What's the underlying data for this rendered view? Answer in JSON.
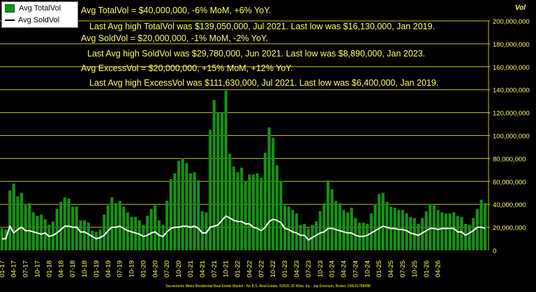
{
  "chart_data": {
    "type": "bar",
    "y_axis_title": "Vol",
    "ylim": [
      0,
      200000000
    ],
    "y_ticks": [
      "0",
      "20,000,000",
      "40,000,000",
      "60,000,000",
      "80,000,000",
      "100,000,000",
      "120,000,000",
      "140,000,000",
      "160,000,000",
      "180,000,000",
      "200,000,000"
    ],
    "y_tick_values": [
      0,
      20000000,
      40000000,
      60000000,
      80000000,
      100000000,
      120000000,
      140000000,
      160000000,
      180000000,
      200000000
    ],
    "x_tick_labels": [
      "01-17",
      "04-17",
      "07-17",
      "10-17",
      "01-18",
      "04-18",
      "07-18",
      "10-18",
      "01-19",
      "04-19",
      "07-19",
      "10-19",
      "01-20",
      "04-20",
      "07-20",
      "10-20",
      "01-21",
      "04-21",
      "07-21",
      "10-21",
      "01-22",
      "04-22",
      "07-22",
      "10-22",
      "01-23",
      "04-23",
      "07-23",
      "10-23",
      "01-24",
      "04-24",
      "07-24",
      "10-24",
      "01-25",
      "04-25",
      "07-25",
      "10-25",
      "01-26",
      "04-26"
    ],
    "grid": true,
    "legend": "top-left",
    "series": [
      {
        "name": "Avg TotalVol",
        "kind": "bar",
        "color": "#1a8f1a",
        "values": [
          19000000,
          18000000,
          52000000,
          58000000,
          47000000,
          50000000,
          40000000,
          41000000,
          33000000,
          30000000,
          31000000,
          27000000,
          22000000,
          25000000,
          36000000,
          42000000,
          46000000,
          45000000,
          38000000,
          38000000,
          26000000,
          26000000,
          24000000,
          17000000,
          16130000,
          18000000,
          31000000,
          39000000,
          46000000,
          41000000,
          43000000,
          38000000,
          33000000,
          29000000,
          29000000,
          26000000,
          22000000,
          30000000,
          36000000,
          39000000,
          26000000,
          22000000,
          43000000,
          62000000,
          67000000,
          78000000,
          80000000,
          76000000,
          67000000,
          68000000,
          61000000,
          34000000,
          33000000,
          105000000,
          131000000,
          120000000,
          120000000,
          139050000,
          84000000,
          73000000,
          68000000,
          72000000,
          60000000,
          66000000,
          66000000,
          67000000,
          63000000,
          85000000,
          107000000,
          98000000,
          74000000,
          60000000,
          39000000,
          38000000,
          35000000,
          32000000,
          22000000,
          23000000,
          19000000,
          22000000,
          25000000,
          34000000,
          41000000,
          61000000,
          53000000,
          43000000,
          41000000,
          35000000,
          33000000,
          37000000,
          28000000,
          24000000,
          24000000,
          23000000,
          32000000,
          40000000,
          49000000,
          50000000,
          42000000,
          38000000,
          37000000,
          35000000,
          35000000,
          32000000,
          29000000,
          28000000,
          23000000,
          28000000,
          34000000,
          40000000,
          39000000,
          35000000,
          33000000,
          32000000,
          32000000,
          33000000,
          30000000,
          29000000,
          23000000,
          22000000,
          28000000,
          36000000,
          44000000,
          41000000
        ]
      },
      {
        "name": "Avg SoldVol",
        "kind": "line",
        "color": "#ffffff",
        "values": [
          10000000,
          10000000,
          21000000,
          15000000,
          18000000,
          20000000,
          17000000,
          17000000,
          16000000,
          15000000,
          14000000,
          15000000,
          12000000,
          13000000,
          15000000,
          18000000,
          21000000,
          21000000,
          20000000,
          20000000,
          16000000,
          16000000,
          14000000,
          12000000,
          10000000,
          11000000,
          13000000,
          17000000,
          20000000,
          20000000,
          21000000,
          19000000,
          17000000,
          16000000,
          15000000,
          14000000,
          12000000,
          13000000,
          15000000,
          16000000,
          13000000,
          12000000,
          16000000,
          19000000,
          20000000,
          20000000,
          21000000,
          21000000,
          20000000,
          21000000,
          19000000,
          15000000,
          15000000,
          20000000,
          21000000,
          22000000,
          26000000,
          29780000,
          28000000,
          26000000,
          25000000,
          25000000,
          23000000,
          23000000,
          20000000,
          19000000,
          17000000,
          20000000,
          25000000,
          27000000,
          26000000,
          24000000,
          19000000,
          18000000,
          16000000,
          15000000,
          13000000,
          13000000,
          8890000,
          11000000,
          13000000,
          15000000,
          16000000,
          19000000,
          19000000,
          18000000,
          17000000,
          16000000,
          15000000,
          15000000,
          13000000,
          12000000,
          12000000,
          13000000,
          15000000,
          17000000,
          19000000,
          21000000,
          20000000,
          19000000,
          19000000,
          18000000,
          18000000,
          17000000,
          15000000,
          14000000,
          13000000,
          15000000,
          17000000,
          19000000,
          19000000,
          18000000,
          19000000,
          19000000,
          19000000,
          19000000,
          16000000,
          16000000,
          13000000,
          15000000,
          17000000,
          20000000,
          20000000,
          19000000
        ]
      }
    ],
    "annotations": [
      "Avg TotalVol = $40,000,000, -6% MoM, +6% YoY.",
      "Last Avg high TotalVol was $139,050,000, Jul 2021. Last low was $16,130,000, Jan 2019.",
      "Avg SoldVol = $20,000,000, -1% MoM, -2% YoY.",
      "Last Avg high SoldVol was $29,780,000, Jun 2021. Last low was $8,890,000, Jan 2023.",
      "Avg ExcessVol = $20,000,000, +15% MoM, +12% YoY.",
      "Last Avg high ExcessVol was $111,630,000, Jul 2021. Last low was $6,400,000, Jan 2019."
    ],
    "footer": "Sacramento Metro Residential Real Estate Market - No B.S. Real Estate, ©2026 JD Wise, Inc - Jay Emerson, Broker, DRE#1788488"
  },
  "colors": {
    "background": "#000000",
    "grid": "#c8c800",
    "text": "#ffff66",
    "bar": "#1a8f1a",
    "bar_edge": "#0b5d0b",
    "line": "#ffffff"
  }
}
